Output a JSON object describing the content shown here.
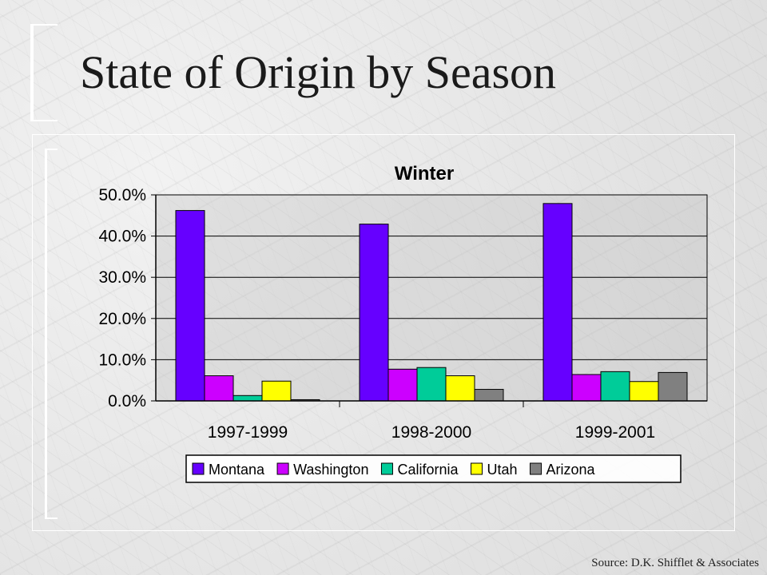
{
  "slide": {
    "title": "State of Origin by Season",
    "source": "Source: D.K. Shifflet & Associates"
  },
  "chart_data": {
    "type": "bar",
    "title": "Winter",
    "xlabel": "",
    "ylabel": "",
    "categories": [
      "1997-1999",
      "1998-2000",
      "1999-2001"
    ],
    "series": [
      {
        "name": "Montana",
        "color": "#6600ff",
        "values": [
          46.2,
          42.9,
          47.9
        ]
      },
      {
        "name": "Washington",
        "color": "#cc00ff",
        "values": [
          6.1,
          7.7,
          6.4
        ]
      },
      {
        "name": "California",
        "color": "#00cc99",
        "values": [
          1.3,
          8.1,
          7.1
        ]
      },
      {
        "name": "Utah",
        "color": "#ffff00",
        "values": [
          4.8,
          6.1,
          4.7
        ]
      },
      {
        "name": "Arizona",
        "color": "#808080",
        "values": [
          0.3,
          2.8,
          6.9
        ]
      }
    ],
    "ylim": [
      0,
      50
    ],
    "yticks": [
      0,
      10,
      20,
      30,
      40,
      50
    ],
    "ytick_labels": [
      "0.0%",
      "10.0%",
      "20.0%",
      "30.0%",
      "40.0%",
      "50.0%"
    ],
    "grid": true,
    "legend_position": "bottom"
  }
}
